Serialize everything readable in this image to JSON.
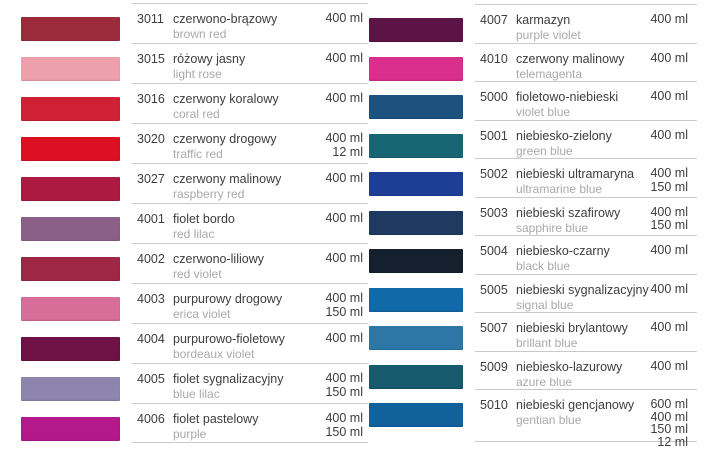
{
  "catalog": {
    "columns": [
      {
        "side": "left",
        "rows": [
          {
            "code": "3011",
            "name_pl": "czerwono-brązowy",
            "name_en": "brown red",
            "volumes": [
              "400 ml"
            ],
            "color": "#9b2b3b"
          },
          {
            "code": "3015",
            "name_pl": "różowy jasny",
            "name_en": "light rose",
            "volumes": [
              "400 ml"
            ],
            "color": "#eda0ab"
          },
          {
            "code": "3016",
            "name_pl": "czerwony koralowy",
            "name_en": "coral red",
            "volumes": [
              "400 ml"
            ],
            "color": "#cf2133"
          },
          {
            "code": "3020",
            "name_pl": "czerwony drogowy",
            "name_en": "traffic red",
            "volumes": [
              "400 ml",
              "12 ml"
            ],
            "color": "#db1022"
          },
          {
            "code": "3027",
            "name_pl": "czerwony malinowy",
            "name_en": "raspberry red",
            "volumes": [
              "400 ml"
            ],
            "color": "#ac1a42"
          },
          {
            "code": "4001",
            "name_pl": "fiolet bordo",
            "name_en": "red lilac",
            "volumes": [
              "400 ml"
            ],
            "color": "#8b6088"
          },
          {
            "code": "4002",
            "name_pl": "czerwono-liliowy",
            "name_en": "red violet",
            "volumes": [
              "400 ml"
            ],
            "color": "#9e2746"
          },
          {
            "code": "4003",
            "name_pl": "purpurowy drogowy",
            "name_en": "erica violet",
            "volumes": [
              "400 ml",
              "150 ml"
            ],
            "color": "#d76d99"
          },
          {
            "code": "4004",
            "name_pl": "purpurowo-fioletowy",
            "name_en": "bordeaux violet",
            "volumes": [
              "400 ml"
            ],
            "color": "#6e1144"
          },
          {
            "code": "4005",
            "name_pl": "fiolet sygnalizacyjny",
            "name_en": "blue lilac",
            "volumes": [
              "400 ml",
              "150 ml"
            ],
            "color": "#8d85ae"
          },
          {
            "code": "4006",
            "name_pl": "fiolet pastelowy",
            "name_en": "purple",
            "volumes": [
              "400 ml",
              "150 ml"
            ],
            "color": "#b5188b"
          }
        ]
      },
      {
        "side": "right",
        "rows": [
          {
            "code": "4007",
            "name_pl": "karmazyn",
            "name_en": "purple violet",
            "volumes": [
              "400 ml"
            ],
            "color": "#5c1345"
          },
          {
            "code": "4010",
            "name_pl": "czerwony malinowy",
            "name_en": "telemagenta",
            "volumes": [
              "400 ml"
            ],
            "color": "#d92e8b"
          },
          {
            "code": "5000",
            "name_pl": "fioletowo-niebieski",
            "name_en": "violet blue",
            "volumes": [
              "400 ml"
            ],
            "color": "#1d527f"
          },
          {
            "code": "5001",
            "name_pl": "niebiesko-zielony",
            "name_en": "green blue",
            "volumes": [
              "400 ml"
            ],
            "color": "#186673"
          },
          {
            "code": "5002",
            "name_pl": "niebieski ultramaryna",
            "name_en": "ultramarine blue",
            "volumes": [
              "400 ml",
              "150 ml"
            ],
            "color": "#1c3e94"
          },
          {
            "code": "5003",
            "name_pl": "niebieski szafirowy",
            "name_en": "sapphire blue",
            "volumes": [
              "400 ml",
              "150 ml"
            ],
            "color": "#1e3a60"
          },
          {
            "code": "5004",
            "name_pl": "niebiesko-czarny",
            "name_en": "black blue",
            "volumes": [
              "400 ml"
            ],
            "color": "#14202d"
          },
          {
            "code": "5005",
            "name_pl": "niebieski sygnalizacyjny",
            "name_en": "signal blue",
            "volumes": [
              "400 ml"
            ],
            "color": "#1169a8"
          },
          {
            "code": "5007",
            "name_pl": "niebieski brylantowy",
            "name_en": "brillant blue",
            "volumes": [
              "400 ml"
            ],
            "color": "#2d76a6"
          },
          {
            "code": "5009",
            "name_pl": "niebiesko-lazurowy",
            "name_en": "azure blue",
            "volumes": [
              "400 ml"
            ],
            "color": "#175a6e"
          },
          {
            "code": "5010",
            "name_pl": "niebieski gencjanowy",
            "name_en": "gentian blue",
            "volumes": [
              "600 ml",
              "400 ml",
              "150 ml",
              "12 ml"
            ],
            "color": "#10619c"
          }
        ]
      }
    ]
  }
}
